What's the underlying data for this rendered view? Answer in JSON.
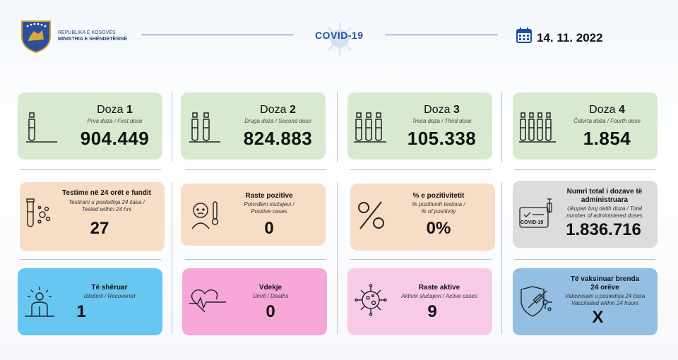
{
  "header": {
    "org_line1": "REPUBLIKA E KOSOVËS",
    "org_line2": "MINISTRIA E SHËNDETËSISË",
    "title": "COVID-19",
    "date": "14. 11. 2022",
    "logo_icon": "kosovo-coat-of-arms",
    "calendar_icon": "calendar-icon",
    "accent_color": "#1f4f9e"
  },
  "doses": [
    {
      "label": "Doza",
      "num": "1",
      "sub": "Prva doza / First dose",
      "value": "904.449",
      "icon": "vial-1-icon"
    },
    {
      "label": "Doza",
      "num": "2",
      "sub": "Druga doza / Second dose",
      "value": "824.883",
      "icon": "vial-2-icon"
    },
    {
      "label": "Doza",
      "num": "3",
      "sub": "Treća doza / Third dose",
      "value": "105.338",
      "icon": "vial-3-icon"
    },
    {
      "label": "Doza",
      "num": "4",
      "sub": "Četvrta doza / Fourth dose",
      "value": "1.854",
      "icon": "vial-4-icon"
    }
  ],
  "tests": {
    "title": "Testime në 24 orët e fundit",
    "sub1": "Testirani u poslednja 24 časa /",
    "sub2": "Tested within 24 hrs",
    "value": "27"
  },
  "positive": {
    "title": "Raste pozitive",
    "sub1": "Potvrđeni slučajevi /",
    "sub2": "Positive cases",
    "value": "0"
  },
  "positivity": {
    "title": "% e pozitivitetit",
    "sub1": "% pozitivnih testova /",
    "sub2": "% of positivity",
    "value": "0%"
  },
  "total_doses": {
    "title1": "Numri total i dozave të",
    "title2": "administruara",
    "sub1": "Ukupan broj datih doza / Total",
    "sub2": "number of administered doses",
    "value": "1.836.716",
    "card_label": "COVID-19"
  },
  "recovered": {
    "title": "Të shëruar",
    "sub": "Izlečeni / Recovered",
    "value": "1"
  },
  "deaths": {
    "title": "Vdekje",
    "sub": "Umrli / Deaths",
    "value": "0"
  },
  "active": {
    "title": "Raste aktive",
    "sub": "Aktivni slučajevi / Active cases",
    "value": "9"
  },
  "vaccinated24": {
    "title1": "Të vaksinuar brenda",
    "title2": "24 orëve",
    "sub1": "Vakcinisani u poslednja 24 časa",
    "sub2": "Vaccinated within 24 hours",
    "value": "X"
  }
}
